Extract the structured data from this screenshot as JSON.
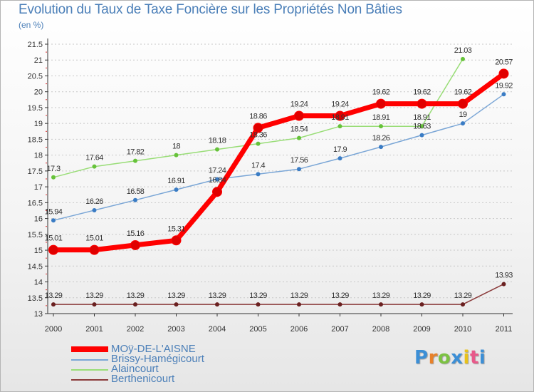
{
  "title": "Evolution du Taux de Taxe Foncière sur les Propriétés Non Bâties",
  "unit": "(en %)",
  "logo": {
    "text": "Proxiti",
    "letters": [
      "P",
      "r",
      "o",
      "x",
      "i",
      "t",
      "i"
    ],
    "colors": [
      "#3c8fd6",
      "#e8812a",
      "#7cc242",
      "#3c8fd6",
      "#e8c21a",
      "#e85a8a",
      "#3c8fd6"
    ]
  },
  "chart_data": {
    "type": "line",
    "title": "Evolution du Taux de Taxe Foncière sur les Propriétés Non Bâties",
    "ylabel": "(en %)",
    "xlabel": "",
    "categories": [
      "2000",
      "2001",
      "2002",
      "2003",
      "2004",
      "2005",
      "2006",
      "2007",
      "2008",
      "2009",
      "2010",
      "2011"
    ],
    "ylim": [
      13,
      21.5
    ],
    "yticks": [
      "13",
      "13.5",
      "14",
      "14.5",
      "15",
      "15.5",
      "16",
      "16.5",
      "17",
      "17.5",
      "18",
      "18.5",
      "19",
      "19.5",
      "20",
      "20.5",
      "21",
      "21.5"
    ],
    "grid": "horizontal dashed",
    "legend_position": "bottom-left",
    "series": [
      {
        "name": "MOÿ-DE-L'AISNE",
        "color": "#ff0000",
        "marker": "#e00000",
        "bold": true,
        "values": [
          15.01,
          15.01,
          15.16,
          15.31,
          16.84,
          18.86,
          19.24,
          19.24,
          19.62,
          19.62,
          19.62,
          20.57
        ],
        "labels": [
          "15.01",
          "15.01",
          "15.16",
          "15.31",
          "16.84",
          "18.86",
          "19.24",
          "19.24",
          "19.62",
          "19.62",
          "19.62",
          "20.57"
        ]
      },
      {
        "name": "Brissy-Hamégicourt",
        "color": "#7aa6d6",
        "marker": "#3a7cc4",
        "bold": false,
        "values": [
          15.94,
          16.26,
          16.58,
          16.91,
          17.24,
          17.4,
          17.56,
          17.9,
          18.26,
          18.63,
          19,
          19.92
        ],
        "labels": [
          "15.94",
          "16.26",
          "16.58",
          "16.91",
          "17.24",
          "17.4",
          "17.56",
          "17.9",
          "18.26",
          "18.63",
          "19",
          "19.92"
        ]
      },
      {
        "name": "Alaincourt",
        "color": "#99dd77",
        "marker": "#66c23a",
        "bold": false,
        "values": [
          17.3,
          17.64,
          17.82,
          18,
          18.18,
          18.36,
          18.54,
          18.91,
          18.91,
          18.91,
          21.03,
          null
        ],
        "labels": [
          "17.3",
          "17.64",
          "17.82",
          "18",
          "18.18",
          "18.36",
          "18.54",
          "18.91",
          "18.91",
          "18.91",
          "21.03",
          ""
        ]
      },
      {
        "name": "Berthenicourt",
        "color": "#8a3a3a",
        "marker": "#6a2020",
        "bold": false,
        "values": [
          13.29,
          13.29,
          13.29,
          13.29,
          13.29,
          13.29,
          13.29,
          13.29,
          13.29,
          13.29,
          13.29,
          13.93
        ],
        "labels": [
          "13.29",
          "13.29",
          "13.29",
          "13.29",
          "13.29",
          "13.29",
          "13.29",
          "13.29",
          "13.29",
          "13.29",
          "13.29",
          "13.93"
        ]
      }
    ]
  }
}
